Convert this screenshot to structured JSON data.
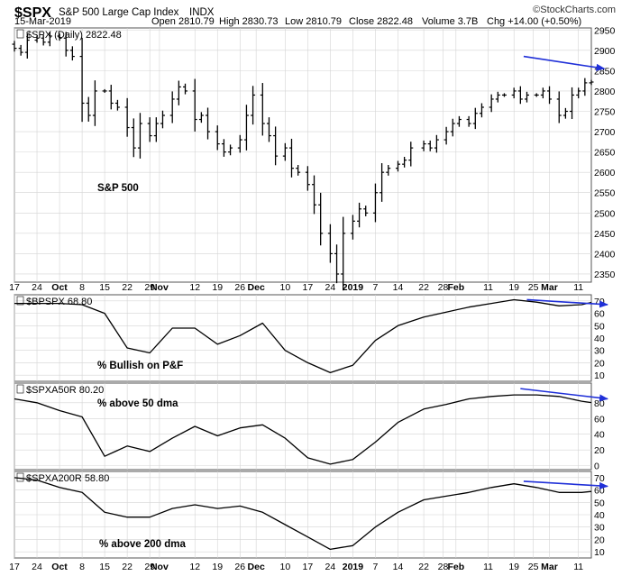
{
  "header": {
    "symbol": "$SPX",
    "name": "S&P 500 Large Cap Index",
    "exchange": "INDX",
    "date": "15-Mar-2019",
    "open": "Open 2810.79",
    "high": "High 2830.73",
    "low": "Low 2810.79",
    "close": "Close 2822.48",
    "volume": "Volume 3.7B",
    "chg": "Chg +14.00 (+0.50%)",
    "brand": "©StockCharts.com"
  },
  "x_axis": {
    "labels": [
      {
        "t": "17",
        "d": 0
      },
      {
        "t": "24",
        "d": 7
      },
      {
        "t": "Oct",
        "d": 14,
        "bold": true
      },
      {
        "t": "8",
        "d": 21
      },
      {
        "t": "15",
        "d": 28
      },
      {
        "t": "22",
        "d": 35
      },
      {
        "t": "29",
        "d": 42
      },
      {
        "t": "Nov",
        "d": 45,
        "bold": true
      },
      {
        "t": "12",
        "d": 56
      },
      {
        "t": "19",
        "d": 63
      },
      {
        "t": "26",
        "d": 70
      },
      {
        "t": "Dec",
        "d": 75,
        "bold": true
      },
      {
        "t": "10",
        "d": 84
      },
      {
        "t": "17",
        "d": 91
      },
      {
        "t": "24",
        "d": 98
      },
      {
        "t": "2019",
        "d": 105,
        "bold": true
      },
      {
        "t": "7",
        "d": 112
      },
      {
        "t": "14",
        "d": 119
      },
      {
        "t": "22",
        "d": 127
      },
      {
        "t": "28",
        "d": 133
      },
      {
        "t": "Feb",
        "d": 137,
        "bold": true
      },
      {
        "t": "11",
        "d": 147
      },
      {
        "t": "19",
        "d": 155
      },
      {
        "t": "25",
        "d": 161
      },
      {
        "t": "Mar",
        "d": 166,
        "bold": true
      },
      {
        "t": "11",
        "d": 175
      }
    ],
    "start": "2018-09-17",
    "end": "2019-03-15"
  },
  "chart_data": [
    {
      "type": "line",
      "style": "ohlc-bars",
      "series": [
        {
          "name": "$SPX (Daily) 2822.48",
          "value": "2822.48"
        }
      ],
      "annotation": "S&P 500",
      "ylim": [
        2330,
        2955
      ],
      "y_ticks": [
        2350,
        2400,
        2450,
        2500,
        2550,
        2600,
        2650,
        2700,
        2750,
        2800,
        2850,
        2900,
        2950
      ],
      "x_days": [
        0,
        2,
        4,
        7,
        9,
        11,
        14,
        16,
        18,
        21,
        23,
        25,
        28,
        30,
        32,
        35,
        37,
        39,
        42,
        44,
        46,
        49,
        51,
        53,
        56,
        58,
        60,
        63,
        65,
        67,
        70,
        72,
        74,
        77,
        79,
        81,
        84,
        86,
        88,
        91,
        93,
        95,
        98,
        100,
        102,
        105,
        107,
        109,
        112,
        114,
        116,
        119,
        121,
        123,
        127,
        129,
        131,
        134,
        136,
        138,
        141,
        143,
        145,
        148,
        150,
        152,
        155,
        157,
        159,
        162,
        164,
        166,
        169,
        171,
        173,
        175,
        177,
        179
      ],
      "close": [
        2905,
        2895,
        2925,
        2930,
        2920,
        2935,
        2930,
        2900,
        2885,
        2770,
        2740,
        2800,
        2800,
        2770,
        2760,
        2710,
        2660,
        2720,
        2690,
        2720,
        2740,
        2780,
        2810,
        2800,
        2730,
        2740,
        2700,
        2670,
        2650,
        2660,
        2680,
        2740,
        2790,
        2720,
        2690,
        2640,
        2660,
        2610,
        2600,
        2570,
        2520,
        2450,
        2400,
        2350,
        2450,
        2480,
        2510,
        2500,
        2550,
        2600,
        2610,
        2620,
        2630,
        2660,
        2670,
        2660,
        2680,
        2700,
        2720,
        2730,
        2720,
        2745,
        2760,
        2780,
        2790,
        2790,
        2800,
        2780,
        2790,
        2790,
        2800,
        2780,
        2740,
        2750,
        2790,
        2800,
        2820,
        2822
      ],
      "arrow": {
        "from": [
          158,
          2885
        ],
        "to": [
          178,
          2855
        ]
      }
    },
    {
      "type": "line",
      "series": [
        {
          "name": "$BPSPX 68.80",
          "value": "68.80"
        }
      ],
      "annotation": "% Bullish on P&F",
      "ylim": [
        5,
        75
      ],
      "y_ticks": [
        10,
        20,
        30,
        40,
        50,
        60,
        70
      ],
      "x_days": [
        0,
        7,
        14,
        21,
        28,
        35,
        42,
        49,
        56,
        63,
        70,
        77,
        84,
        91,
        98,
        105,
        112,
        119,
        127,
        134,
        141,
        148,
        155,
        162,
        169,
        176,
        179
      ],
      "values": [
        68,
        68,
        68,
        67,
        60,
        32,
        28,
        48,
        48,
        35,
        42,
        52,
        30,
        20,
        12,
        18,
        38,
        50,
        57,
        61,
        65,
        68,
        71,
        69,
        66,
        67,
        68.8
      ],
      "arrow": {
        "from": [
          159,
          71
        ],
        "to": [
          179,
          67
        ]
      }
    },
    {
      "type": "line",
      "series": [
        {
          "name": "$SPXA50R 80.20",
          "value": "80.20"
        }
      ],
      "annotation": "% above 50 dma",
      "ylim": [
        -5,
        105
      ],
      "y_ticks": [
        0,
        20,
        40,
        60,
        80
      ],
      "x_days": [
        0,
        7,
        14,
        21,
        28,
        35,
        42,
        49,
        56,
        63,
        70,
        77,
        84,
        91,
        98,
        105,
        112,
        119,
        127,
        134,
        141,
        148,
        155,
        162,
        169,
        176,
        179
      ],
      "values": [
        85,
        80,
        70,
        62,
        12,
        25,
        18,
        35,
        50,
        38,
        48,
        52,
        35,
        10,
        2,
        8,
        30,
        55,
        72,
        78,
        85,
        88,
        90,
        90,
        88,
        82,
        80.2
      ],
      "arrow": {
        "from": [
          157,
          98
        ],
        "to": [
          179,
          85
        ]
      }
    },
    {
      "type": "line",
      "series": [
        {
          "name": "$SPXA200R 58.80",
          "value": "58.80"
        }
      ],
      "annotation": "% above 200 dma",
      "ylim": [
        5,
        75
      ],
      "y_ticks": [
        10,
        20,
        30,
        40,
        50,
        60,
        70
      ],
      "x_days": [
        0,
        7,
        14,
        21,
        28,
        35,
        42,
        49,
        56,
        63,
        70,
        77,
        84,
        91,
        98,
        105,
        112,
        119,
        127,
        134,
        141,
        148,
        155,
        162,
        169,
        176,
        179
      ],
      "values": [
        70,
        68,
        62,
        58,
        42,
        38,
        38,
        45,
        48,
        45,
        47,
        42,
        32,
        22,
        12,
        15,
        30,
        42,
        52,
        55,
        58,
        62,
        65,
        62,
        58,
        58,
        58.8
      ],
      "arrow": {
        "from": [
          158,
          67
        ],
        "to": [
          179,
          63
        ]
      }
    }
  ],
  "colors": {
    "price": "#000000",
    "line": "#000000",
    "arrow": "#2030d8",
    "grid": "#d4d4d4",
    "frame": "#555555",
    "text": "#000000"
  }
}
